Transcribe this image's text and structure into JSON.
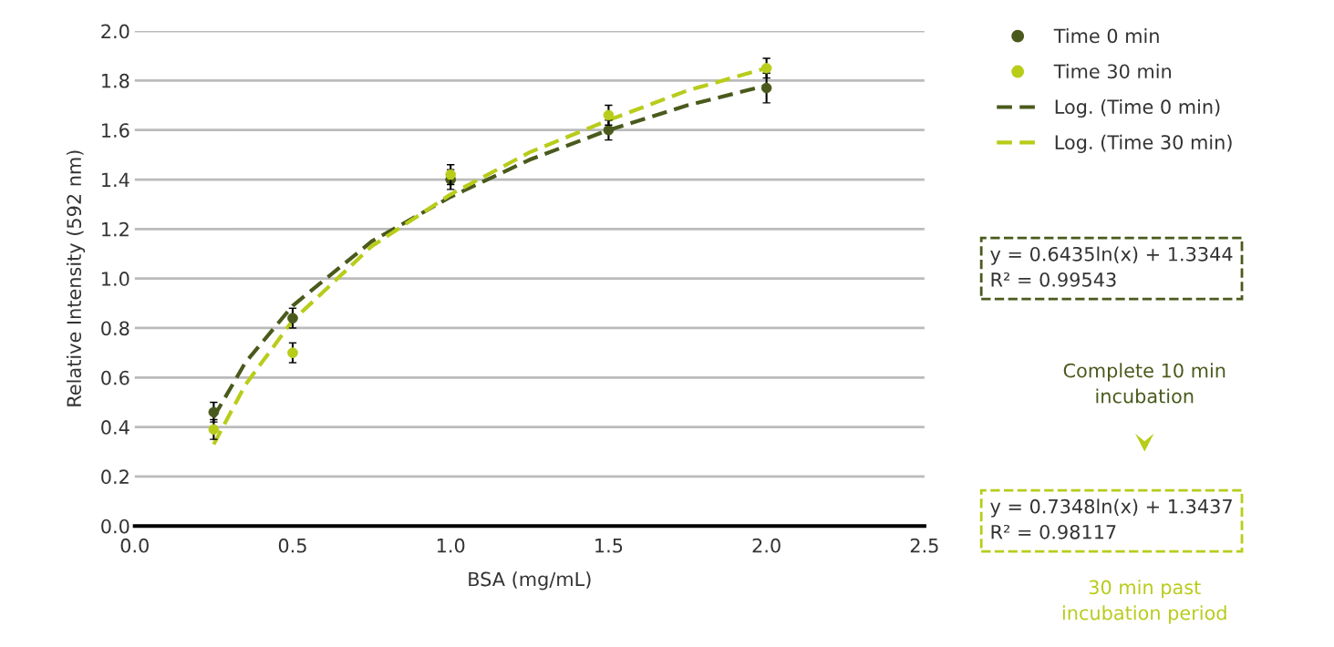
{
  "chart_data": {
    "type": "scatter",
    "xlabel": "BSA (mg/mL)",
    "ylabel": "Relative Intensity (592 nm)",
    "x": [
      0.25,
      0.5,
      1.0,
      1.5,
      2.0
    ],
    "series": [
      {
        "name": "Time 0 min",
        "color": "#4a5a1c",
        "values": [
          0.46,
          0.84,
          1.4,
          1.6,
          1.77
        ],
        "errors": [
          0.04,
          0.04,
          0.04,
          0.04,
          0.06
        ],
        "marker": "circle"
      },
      {
        "name": "Time 30 min",
        "color": "#b8cc1a",
        "values": [
          0.39,
          0.7,
          1.42,
          1.66,
          1.85
        ],
        "errors": [
          0.04,
          0.04,
          0.04,
          0.04,
          0.04
        ],
        "marker": "circle"
      },
      {
        "name": "Log. (Time 0 min)",
        "type": "line",
        "line_style": "dashed",
        "color": "#4a5a1c",
        "x": [
          0.25,
          0.35,
          0.5,
          0.75,
          1.0,
          1.25,
          1.5,
          1.75,
          2.0
        ],
        "values": [
          0.44,
          0.66,
          0.89,
          1.15,
          1.33,
          1.48,
          1.6,
          1.7,
          1.78
        ]
      },
      {
        "name": "Log. (Time 30 min)",
        "type": "line",
        "line_style": "dashed",
        "color": "#b8cc1a",
        "x": [
          0.25,
          0.35,
          0.5,
          0.75,
          1.0,
          1.25,
          1.5,
          1.75,
          2.0
        ],
        "values": [
          0.33,
          0.57,
          0.83,
          1.13,
          1.34,
          1.51,
          1.64,
          1.76,
          1.85
        ]
      }
    ],
    "xlim": [
      0.0,
      2.5
    ],
    "xticks": [
      {
        "value": 0.0,
        "label": "0.0"
      },
      0.5,
      {
        "value": 1.0,
        "label": "1.0"
      },
      1.5,
      {
        "value": 2.0,
        "label": "2.0"
      },
      2.5
    ],
    "ylim": [
      0.0,
      2.0
    ],
    "yticks": [
      {
        "value": 0.0,
        "label": "0.0"
      },
      0.2,
      0.4,
      0.6,
      0.8,
      {
        "value": 1.0,
        "label": "1.0"
      },
      1.2,
      1.4,
      1.6,
      1.8,
      {
        "value": 2.0,
        "label": "2.0"
      }
    ],
    "grid": "y",
    "legend": "right",
    "annotations": [
      "y = 0.6435ln(x) + 1.3344\nR² = 0.99543",
      "Complete 10 min\nincubation",
      "y = 0.7348ln(x) + 1.3437\nR² = 0.98117",
      "30 min past\nincubation period"
    ]
  }
}
